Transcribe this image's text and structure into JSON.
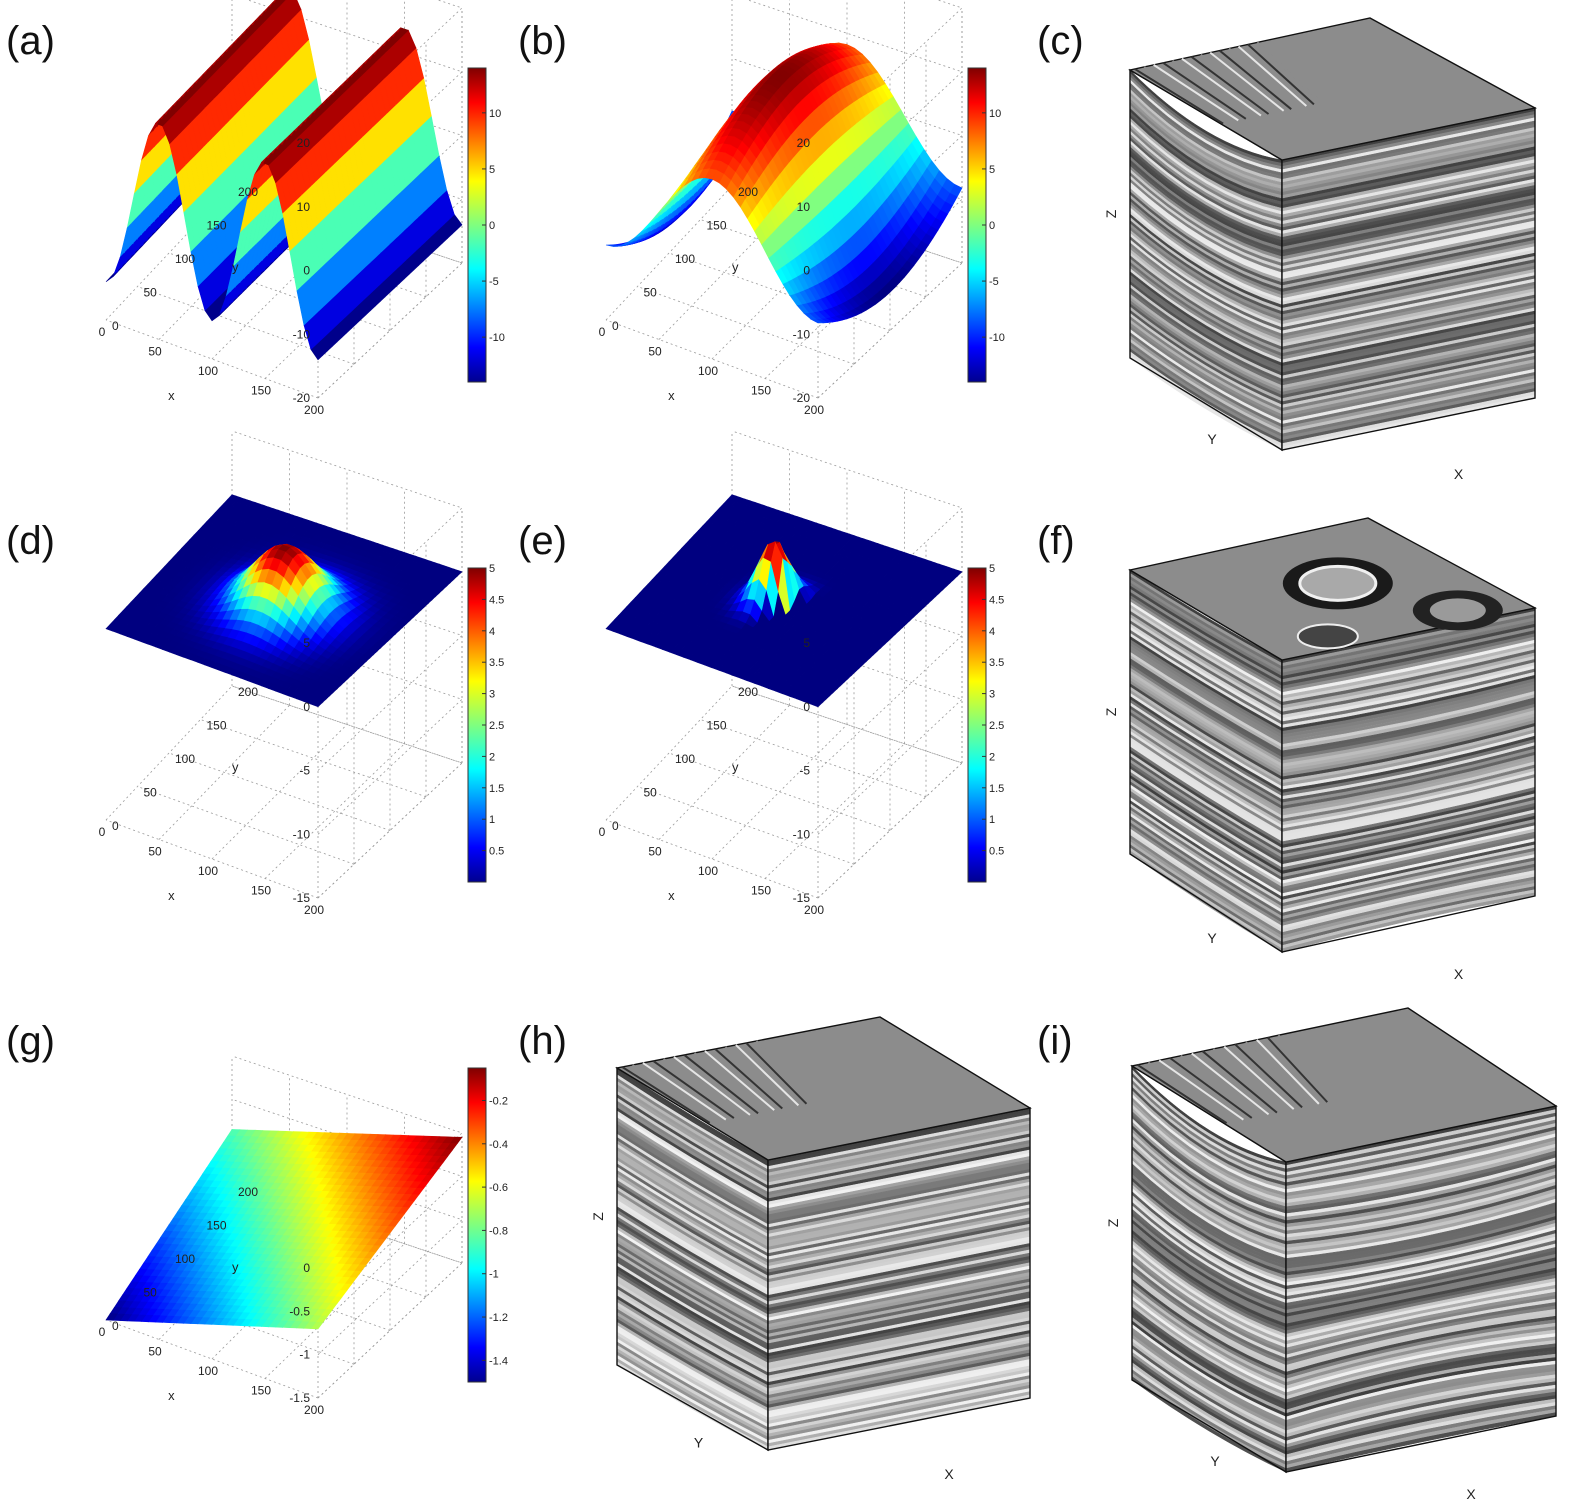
{
  "chart_data": [
    {
      "id": "a",
      "panel_label": "(a)",
      "type": "surface",
      "surface": "sine_ridges_fine",
      "xlabel": "x",
      "ylabel": "y",
      "zlabel": "",
      "x_ticks": [
        "200",
        "150",
        "100",
        "50",
        "0"
      ],
      "y_ticks": [
        "0",
        "50",
        "100",
        "150",
        "200"
      ],
      "z_ticks": [
        "20",
        "10",
        "0",
        "-10",
        "-20"
      ],
      "zlim": [
        -20,
        20
      ],
      "colorbar": {
        "ticks": [
          "10",
          "5",
          "0",
          "-5",
          "-10"
        ],
        "range": [
          -14,
          14
        ],
        "colormap": "jet"
      }
    },
    {
      "id": "b",
      "panel_label": "(b)",
      "type": "surface",
      "surface": "sine_ridges_broad",
      "xlabel": "x",
      "ylabel": "y",
      "zlabel": "",
      "x_ticks": [
        "200",
        "150",
        "100",
        "50",
        "0"
      ],
      "y_ticks": [
        "0",
        "50",
        "100",
        "150",
        "200"
      ],
      "z_ticks": [
        "20",
        "10",
        "0",
        "-10",
        "-20"
      ],
      "zlim": [
        -20,
        20
      ],
      "colorbar": {
        "ticks": [
          "10",
          "5",
          "0",
          "-5",
          "-10"
        ],
        "range": [
          -14,
          14
        ],
        "colormap": "jet"
      }
    },
    {
      "id": "c",
      "panel_label": "(c)",
      "type": "seismic_cube",
      "style": "folded_flat_top",
      "axis_labels": {
        "z": "Z",
        "y": "Y",
        "x": "X"
      }
    },
    {
      "id": "d",
      "panel_label": "(d)",
      "type": "surface",
      "surface": "gaussian_bump",
      "xlabel": "x",
      "ylabel": "y",
      "zlabel": "",
      "x_ticks": [
        "200",
        "150",
        "100",
        "50",
        "0"
      ],
      "y_ticks": [
        "0",
        "50",
        "100",
        "150",
        "200"
      ],
      "z_ticks": [
        "5",
        "0",
        "-5",
        "-10",
        "-15"
      ],
      "zlim": [
        -15,
        5
      ],
      "colorbar": {
        "ticks": [
          "5",
          "4.5",
          "4",
          "3.5",
          "3",
          "2.5",
          "2",
          "1.5",
          "1",
          "0.5"
        ],
        "range": [
          0,
          5
        ],
        "colormap": "jet"
      }
    },
    {
      "id": "e",
      "panel_label": "(e)",
      "type": "surface",
      "surface": "crescent_bump",
      "xlabel": "x",
      "ylabel": "y",
      "zlabel": "",
      "x_ticks": [
        "200",
        "150",
        "100",
        "50",
        "0"
      ],
      "y_ticks": [
        "0",
        "50",
        "100",
        "150",
        "200"
      ],
      "z_ticks": [
        "5",
        "0",
        "-5",
        "-10",
        "-15"
      ],
      "zlim": [
        -15,
        5
      ],
      "colorbar": {
        "ticks": [
          "5",
          "4.5",
          "4",
          "3.5",
          "3",
          "2.5",
          "2",
          "1.5",
          "1",
          "0.5"
        ],
        "range": [
          0,
          5
        ],
        "colormap": "jet"
      }
    },
    {
      "id": "f",
      "panel_label": "(f)",
      "type": "seismic_cube",
      "style": "domes_top",
      "axis_labels": {
        "z": "Z",
        "y": "Y",
        "x": "X"
      }
    },
    {
      "id": "g",
      "panel_label": "(g)",
      "type": "surface",
      "surface": "plane",
      "xlabel": "x",
      "ylabel": "y",
      "zlabel": "",
      "x_ticks": [
        "200",
        "150",
        "100",
        "50",
        "0"
      ],
      "y_ticks": [
        "0",
        "50",
        "100",
        "150",
        "200"
      ],
      "z_ticks": [
        "0",
        "-0.5",
        "-1",
        "-1.5"
      ],
      "zlim": [
        -1.5,
        0
      ],
      "colorbar": {
        "ticks": [
          "-0.2",
          "-0.4",
          "-0.6",
          "-0.8",
          "-1",
          "-1.2",
          "-1.4"
        ],
        "range": [
          -1.5,
          -0.05
        ],
        "colormap": "jet"
      }
    },
    {
      "id": "h",
      "panel_label": "(h)",
      "type": "seismic_cube",
      "style": "tilted_cut",
      "axis_labels": {
        "z": "Z",
        "y": "Y",
        "x": "X"
      }
    },
    {
      "id": "i",
      "panel_label": "(i)",
      "type": "seismic_cube",
      "style": "folded_faulted",
      "axis_labels": {
        "z": "Z",
        "y": "Y",
        "x": "X"
      }
    }
  ]
}
